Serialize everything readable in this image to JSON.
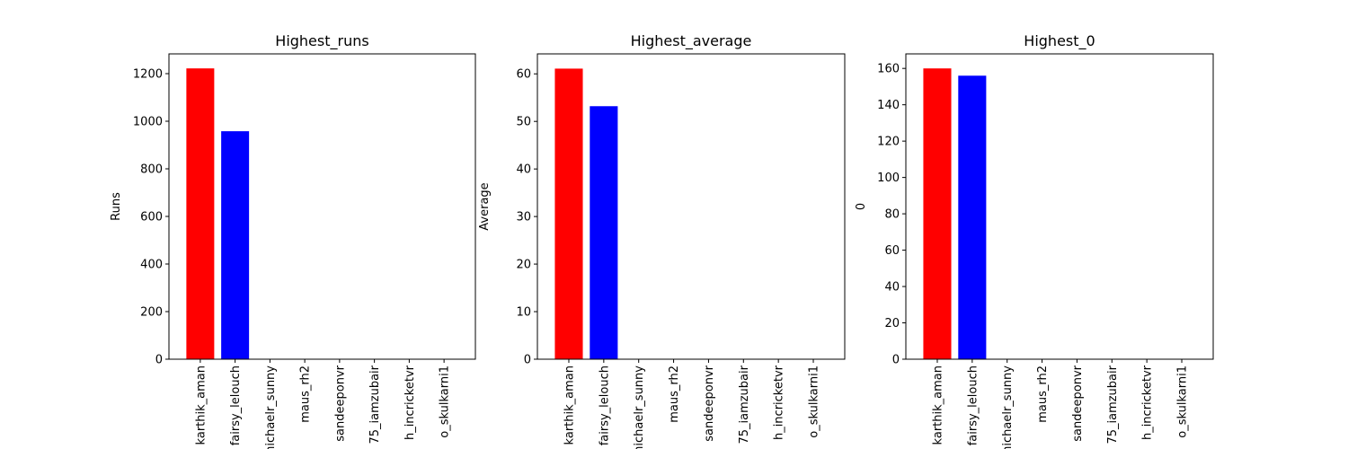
{
  "chart_data": [
    {
      "type": "bar",
      "title": "Highest_runs",
      "xlabel": "",
      "ylabel": "Runs",
      "categories": [
        "karthik_aman",
        "fairsy_lelouch",
        "michaelr_sunny",
        "maus_rh2",
        "sandeeponvr",
        "75_iamzubair",
        "h_incricketvr",
        "o_skulkarni1"
      ],
      "values": [
        1222,
        958,
        0,
        0,
        0,
        0,
        0,
        0
      ],
      "colors": [
        "#ff0000",
        "#0000ff",
        "#ff0000",
        "#0000ff",
        "#ff0000",
        "#0000ff",
        "#ff0000",
        "#0000ff"
      ],
      "ylim": [
        0,
        1283
      ],
      "yticks": [
        0,
        200,
        400,
        600,
        800,
        1000,
        1200
      ]
    },
    {
      "type": "bar",
      "title": "Highest_average",
      "xlabel": "",
      "ylabel": "Average",
      "categories": [
        "karthik_aman",
        "fairsy_lelouch",
        "michaelr_sunny",
        "maus_rh2",
        "sandeeponvr",
        "75_iamzubair",
        "h_incricketvr",
        "o_skulkarni1"
      ],
      "values": [
        61.1,
        53.2,
        0,
        0,
        0,
        0,
        0,
        0
      ],
      "colors": [
        "#ff0000",
        "#0000ff",
        "#ff0000",
        "#0000ff",
        "#ff0000",
        "#0000ff",
        "#ff0000",
        "#0000ff"
      ],
      "ylim": [
        0,
        64.2
      ],
      "yticks": [
        0,
        10,
        20,
        30,
        40,
        50,
        60
      ]
    },
    {
      "type": "bar",
      "title": "Highest_0",
      "xlabel": "",
      "ylabel": "0",
      "categories": [
        "karthik_aman",
        "fairsy_lelouch",
        "michaelr_sunny",
        "maus_rh2",
        "sandeeponvr",
        "75_iamzubair",
        "h_incricketvr",
        "o_skulkarni1"
      ],
      "values": [
        160,
        156,
        0,
        0,
        0,
        0,
        0,
        0
      ],
      "colors": [
        "#ff0000",
        "#0000ff",
        "#ff0000",
        "#0000ff",
        "#ff0000",
        "#0000ff",
        "#ff0000",
        "#0000ff"
      ],
      "ylim": [
        0,
        168
      ],
      "yticks": [
        0,
        20,
        40,
        60,
        80,
        100,
        120,
        140,
        160
      ]
    }
  ]
}
